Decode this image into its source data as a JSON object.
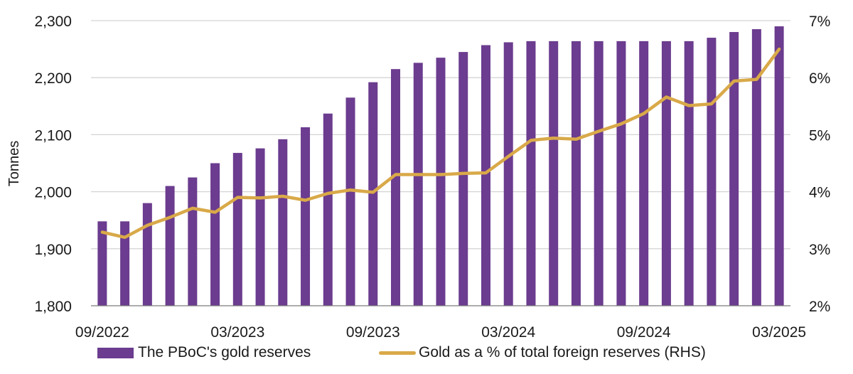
{
  "chart_data": {
    "type": "bar+line",
    "title": "",
    "xlabel": "",
    "ylabel": "Tonnes",
    "ylabel_right": "",
    "ylim": [
      1800,
      2300
    ],
    "ylim_right": [
      2,
      7
    ],
    "y_ticks": [
      "1,800",
      "1,900",
      "2,000",
      "2,100",
      "2,200",
      "2,300"
    ],
    "y_tick_values": [
      1800,
      1900,
      2000,
      2100,
      2200,
      2300
    ],
    "y_right_ticks": [
      "2%",
      "3%",
      "4%",
      "5%",
      "6%",
      "7%"
    ],
    "y_right_tick_values": [
      2,
      3,
      4,
      5,
      6,
      7
    ],
    "grid": true,
    "legend_position": "bottom",
    "x_tick_labels": [
      {
        "index": 0,
        "label": "09/2022"
      },
      {
        "index": 6,
        "label": "03/2023"
      },
      {
        "index": 12,
        "label": "09/2023"
      },
      {
        "index": 18,
        "label": "03/2024"
      },
      {
        "index": 24,
        "label": "09/2024"
      },
      {
        "index": 30,
        "label": "03/2025"
      }
    ],
    "categories": [
      "09/2022",
      "10/2022",
      "11/2022",
      "12/2022",
      "01/2023",
      "02/2023",
      "03/2023",
      "04/2023",
      "05/2023",
      "06/2023",
      "07/2023",
      "08/2023",
      "09/2023",
      "10/2023",
      "11/2023",
      "12/2023",
      "01/2024",
      "02/2024",
      "03/2024",
      "04/2024",
      "05/2024",
      "06/2024",
      "07/2024",
      "08/2024",
      "09/2024",
      "10/2024",
      "11/2024",
      "12/2024",
      "01/2025",
      "02/2025",
      "03/2025"
    ],
    "series": [
      {
        "name": "The PBoC's gold reserves",
        "type": "bar",
        "axis": "left",
        "color": "#6B3C8F",
        "values": [
          1948,
          1948,
          1980,
          2010,
          2025,
          2050,
          2068,
          2076,
          2092,
          2113,
          2137,
          2165,
          2192,
          2215,
          2226,
          2235,
          2245,
          2257,
          2262,
          2264,
          2264,
          2264,
          2264,
          2264,
          2264,
          2264,
          2264,
          2270,
          2280,
          2285,
          2290
        ]
      },
      {
        "name": "Gold as a % of total foreign reserves (RHS)",
        "type": "line",
        "axis": "right",
        "color": "#D9A949",
        "values": [
          3.29,
          3.2,
          3.41,
          3.55,
          3.71,
          3.64,
          3.9,
          3.89,
          3.92,
          3.85,
          3.97,
          4.03,
          3.99,
          4.3,
          4.3,
          4.3,
          4.32,
          4.33,
          4.62,
          4.9,
          4.94,
          4.92,
          5.06,
          5.19,
          5.37,
          5.66,
          5.51,
          5.54,
          5.94,
          5.97,
          6.5
        ]
      }
    ]
  },
  "legend": {
    "bar_label": "The PBoC's gold reserves",
    "line_label": "Gold as a % of total foreign reserves (RHS)"
  }
}
